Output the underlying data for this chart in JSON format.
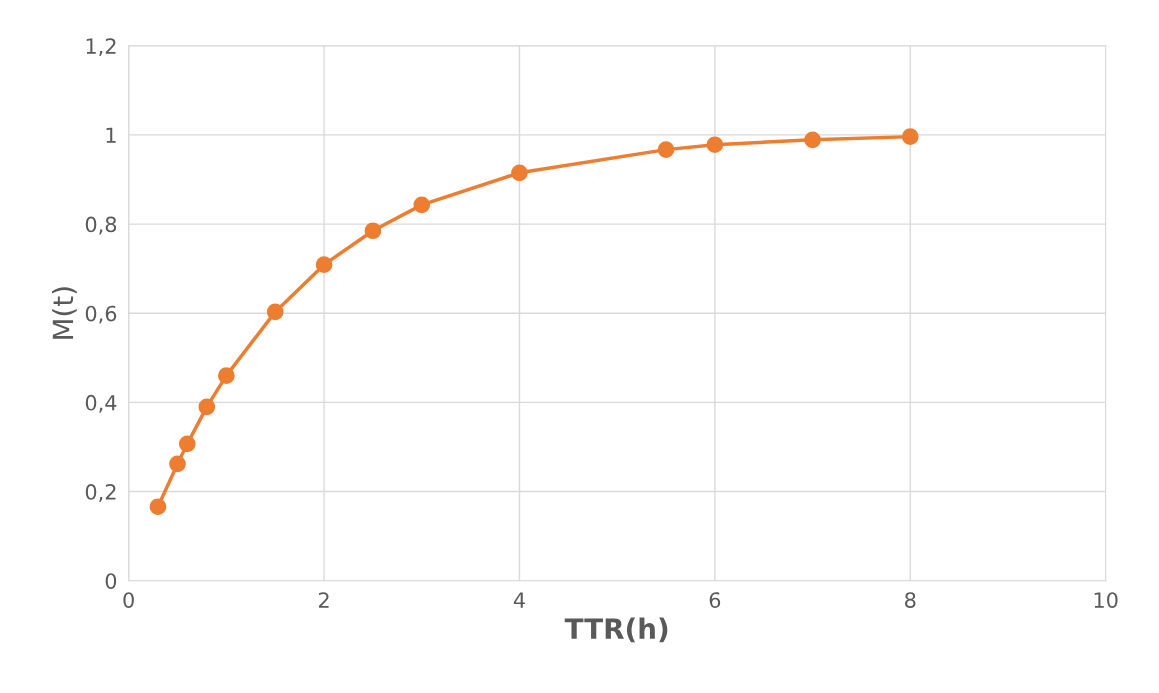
{
  "chart_data": {
    "type": "line",
    "xlabel": "TTR(h)",
    "ylabel": "M(t)",
    "series": [
      {
        "color": "#ed7d31",
        "x": [
          0.3,
          0.5,
          0.6,
          0.8,
          1.0,
          1.5,
          2,
          2.5,
          3,
          4,
          5.5,
          6,
          7,
          8
        ],
        "values": [
          0.166,
          0.262,
          0.307,
          0.39,
          0.46,
          0.603,
          0.709,
          0.785,
          0.843,
          0.915,
          0.967,
          0.978,
          0.989,
          0.996
        ]
      }
    ],
    "xlim": [
      0,
      10
    ],
    "xticks": [
      0,
      2,
      4,
      6,
      8,
      10
    ],
    "ylim": [
      0,
      1.2
    ],
    "yticks": [
      0,
      {
        "value": 0.2,
        "label": "0,2"
      },
      {
        "value": 0.4,
        "label": "0,4"
      },
      {
        "value": 0.6,
        "label": "0,6"
      },
      {
        "value": 0.8,
        "label": "0,8"
      },
      1,
      {
        "value": 1.2,
        "label": "1,2"
      }
    ],
    "grid": true,
    "marker": "circle",
    "line_style": "solid",
    "legend": false
  }
}
